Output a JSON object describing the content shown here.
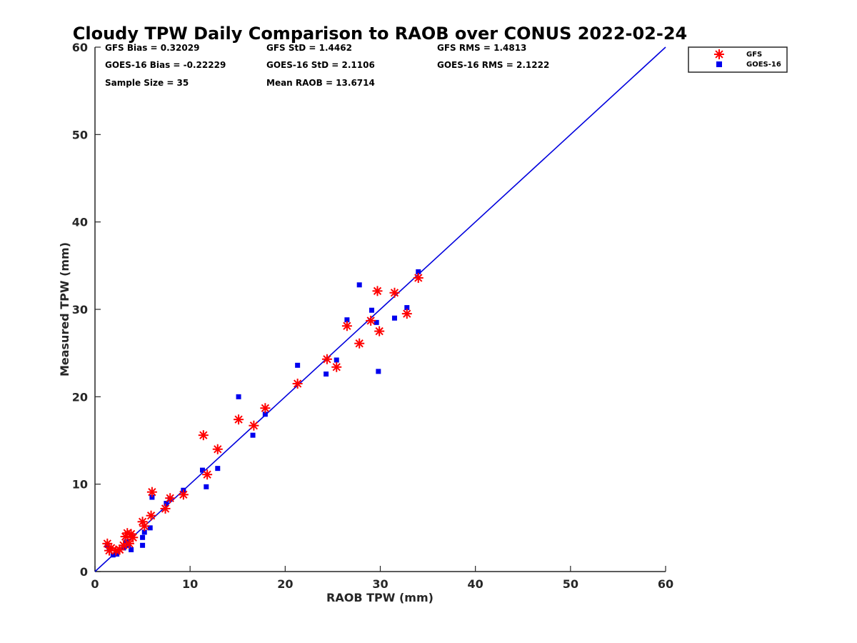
{
  "chart_data": {
    "type": "scatter",
    "title": "Cloudy TPW Daily Comparison to RAOB over CONUS 2022-02-24",
    "xlabel": "RAOB TPW (mm)",
    "ylabel": "Measured TPW (mm)",
    "xlim": [
      0,
      60
    ],
    "ylim": [
      0,
      60
    ],
    "xticks": [
      "0",
      "10",
      "20",
      "30",
      "40",
      "50",
      "60"
    ],
    "yticks": [
      "0",
      "10",
      "20",
      "30",
      "40",
      "50",
      "60"
    ],
    "grid": false,
    "legend_position": "top-right outside",
    "reference_line": {
      "x": [
        0,
        60
      ],
      "y": [
        0,
        60
      ],
      "color": "#0000dd"
    },
    "stats": [
      "GFS Bias = 0.32029",
      "GFS StD = 1.4462",
      "GFS RMS = 1.4813",
      "GOES-16 Bias = -0.22229",
      "GOES-16 StD = 2.1106",
      "GOES-16 RMS = 2.1222",
      "Sample Size = 35",
      "Mean RAOB = 13.6714"
    ],
    "series": [
      {
        "name": "GFS",
        "marker": "asterisk",
        "color": "#ff0000",
        "points": [
          [
            1.3,
            3.2
          ],
          [
            1.5,
            2.4
          ],
          [
            1.7,
            2.7
          ],
          [
            2.2,
            2.4
          ],
          [
            2.6,
            2.5
          ],
          [
            3.0,
            3.0
          ],
          [
            3.2,
            4.0
          ],
          [
            3.4,
            4.4
          ],
          [
            3.6,
            3.2
          ],
          [
            3.8,
            4.3
          ],
          [
            4.0,
            3.9
          ],
          [
            5.0,
            5.7
          ],
          [
            5.2,
            5.2
          ],
          [
            5.9,
            6.4
          ],
          [
            6.0,
            9.1
          ],
          [
            7.4,
            7.2
          ],
          [
            7.9,
            8.4
          ],
          [
            9.3,
            8.8
          ],
          [
            11.4,
            15.6
          ],
          [
            11.8,
            11.1
          ],
          [
            12.9,
            14.0
          ],
          [
            15.1,
            17.4
          ],
          [
            16.7,
            16.7
          ],
          [
            17.9,
            18.7
          ],
          [
            21.3,
            21.5
          ],
          [
            24.4,
            24.3
          ],
          [
            25.4,
            23.4
          ],
          [
            26.5,
            28.1
          ],
          [
            27.8,
            26.1
          ],
          [
            29.0,
            28.7
          ],
          [
            29.7,
            32.1
          ],
          [
            29.9,
            27.5
          ],
          [
            31.5,
            31.9
          ],
          [
            32.8,
            29.5
          ],
          [
            34.0,
            33.6
          ]
        ]
      },
      {
        "name": "GOES-16",
        "marker": "square",
        "color": "#0000ee",
        "points": [
          [
            1.3,
            3.0
          ],
          [
            1.5,
            2.6
          ],
          [
            1.9,
            1.9
          ],
          [
            2.3,
            2.0
          ],
          [
            3.0,
            2.7
          ],
          [
            3.3,
            3.4
          ],
          [
            3.5,
            3.0
          ],
          [
            3.8,
            2.5
          ],
          [
            5.0,
            3.0
          ],
          [
            5.0,
            3.9
          ],
          [
            5.2,
            4.5
          ],
          [
            5.8,
            5.0
          ],
          [
            6.0,
            8.5
          ],
          [
            7.5,
            7.8
          ],
          [
            7.9,
            8.3
          ],
          [
            9.3,
            9.3
          ],
          [
            11.3,
            11.6
          ],
          [
            11.7,
            9.7
          ],
          [
            12.9,
            11.8
          ],
          [
            15.1,
            20.0
          ],
          [
            16.6,
            15.6
          ],
          [
            17.9,
            18.0
          ],
          [
            21.3,
            23.6
          ],
          [
            24.3,
            22.6
          ],
          [
            25.4,
            24.2
          ],
          [
            26.5,
            28.8
          ],
          [
            27.8,
            32.8
          ],
          [
            29.1,
            29.9
          ],
          [
            29.6,
            28.5
          ],
          [
            29.8,
            22.9
          ],
          [
            31.5,
            29.0
          ],
          [
            32.8,
            30.2
          ],
          [
            34.0,
            34.3
          ]
        ]
      }
    ]
  }
}
